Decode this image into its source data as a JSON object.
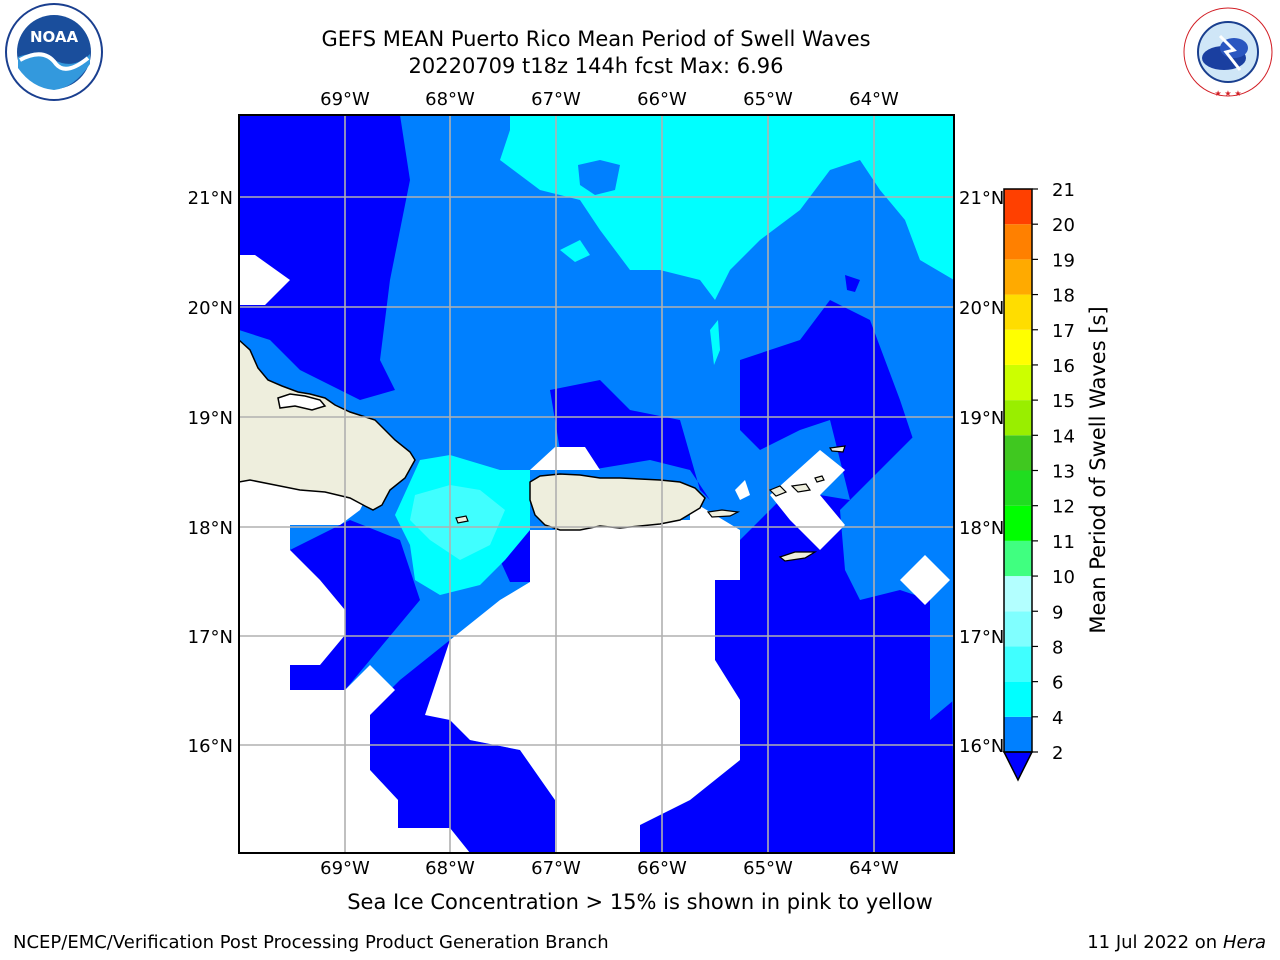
{
  "header": {
    "title_line1": "GEFS MEAN Puerto Rico Mean Period of Swell Waves",
    "title_line2": "20220709 t18z 144h fcst   Max: 6.96"
  },
  "map": {
    "lon_labels": [
      "69°W",
      "68°W",
      "67°W",
      "66°W",
      "65°W",
      "64°W"
    ],
    "lat_labels": [
      "21°N",
      "20°N",
      "19°N",
      "18°N",
      "17°N",
      "16°N"
    ],
    "colors": {
      "land": "#eeeedd",
      "deep_blue": "#0000ff",
      "mid_blue": "#0080ff",
      "cyan": "#00ffff",
      "light_cyan": "#40ffff",
      "grid": "#b0b0b0"
    }
  },
  "colorbar": {
    "label": "Mean Period of Swell Waves [s]",
    "ticks": [
      "2",
      "4",
      "6",
      "8",
      "9",
      "10",
      "11",
      "12",
      "13",
      "14",
      "15",
      "16",
      "17",
      "18",
      "19",
      "20",
      "21"
    ],
    "colors": [
      "#0080ff",
      "#00ffff",
      "#40ffff",
      "#80ffff",
      "#b3ffff",
      "#40ff80",
      "#00ff00",
      "#20dd20",
      "#40c820",
      "#99ee00",
      "#ccff00",
      "#ffff00",
      "#ffdd00",
      "#ffaa00",
      "#ff8000",
      "#ff4000",
      "#ff0000"
    ]
  },
  "caption": "Sea Ice Concentration > 15% is shown in pink to yellow",
  "footer": {
    "left": "NCEP/EMC/Verification Post Processing Product Generation Branch",
    "right_prefix": "11 Jul 2022 on ",
    "right_host": "Hera"
  },
  "logos": {
    "noaa_text": "NOAA",
    "nws_text": "NATIONAL WEATHER SERVICE"
  }
}
